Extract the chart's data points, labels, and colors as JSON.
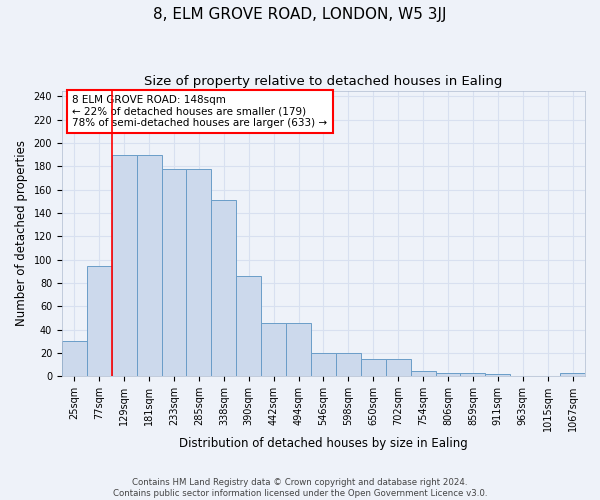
{
  "title": "8, ELM GROVE ROAD, LONDON, W5 3JJ",
  "subtitle": "Size of property relative to detached houses in Ealing",
  "xlabel": "Distribution of detached houses by size in Ealing",
  "ylabel": "Number of detached properties",
  "categories": [
    "25sqm",
    "77sqm",
    "129sqm",
    "181sqm",
    "233sqm",
    "285sqm",
    "338sqm",
    "390sqm",
    "442sqm",
    "494sqm",
    "546sqm",
    "598sqm",
    "650sqm",
    "702sqm",
    "754sqm",
    "806sqm",
    "859sqm",
    "911sqm",
    "963sqm",
    "1015sqm",
    "1067sqm"
  ],
  "values": [
    30,
    95,
    190,
    190,
    178,
    178,
    151,
    86,
    46,
    46,
    20,
    20,
    15,
    15,
    5,
    3,
    3,
    2,
    0,
    0,
    3
  ],
  "bar_color": "#ccd9ec",
  "bar_edge_color": "#6a9dc8",
  "red_line_index": 2,
  "annotation_line1": "8 ELM GROVE ROAD: 148sqm",
  "annotation_line2": "← 22% of detached houses are smaller (179)",
  "annotation_line3": "78% of semi-detached houses are larger (633) →",
  "ylim": [
    0,
    245
  ],
  "yticks": [
    0,
    20,
    40,
    60,
    80,
    100,
    120,
    140,
    160,
    180,
    200,
    220,
    240
  ],
  "footer_line1": "Contains HM Land Registry data © Crown copyright and database right 2024.",
  "footer_line2": "Contains public sector information licensed under the Open Government Licence v3.0.",
  "background_color": "#eef2f9",
  "grid_color": "#d8e0f0",
  "title_fontsize": 11,
  "subtitle_fontsize": 9.5,
  "tick_fontsize": 7,
  "ylabel_fontsize": 8.5,
  "xlabel_fontsize": 8.5
}
